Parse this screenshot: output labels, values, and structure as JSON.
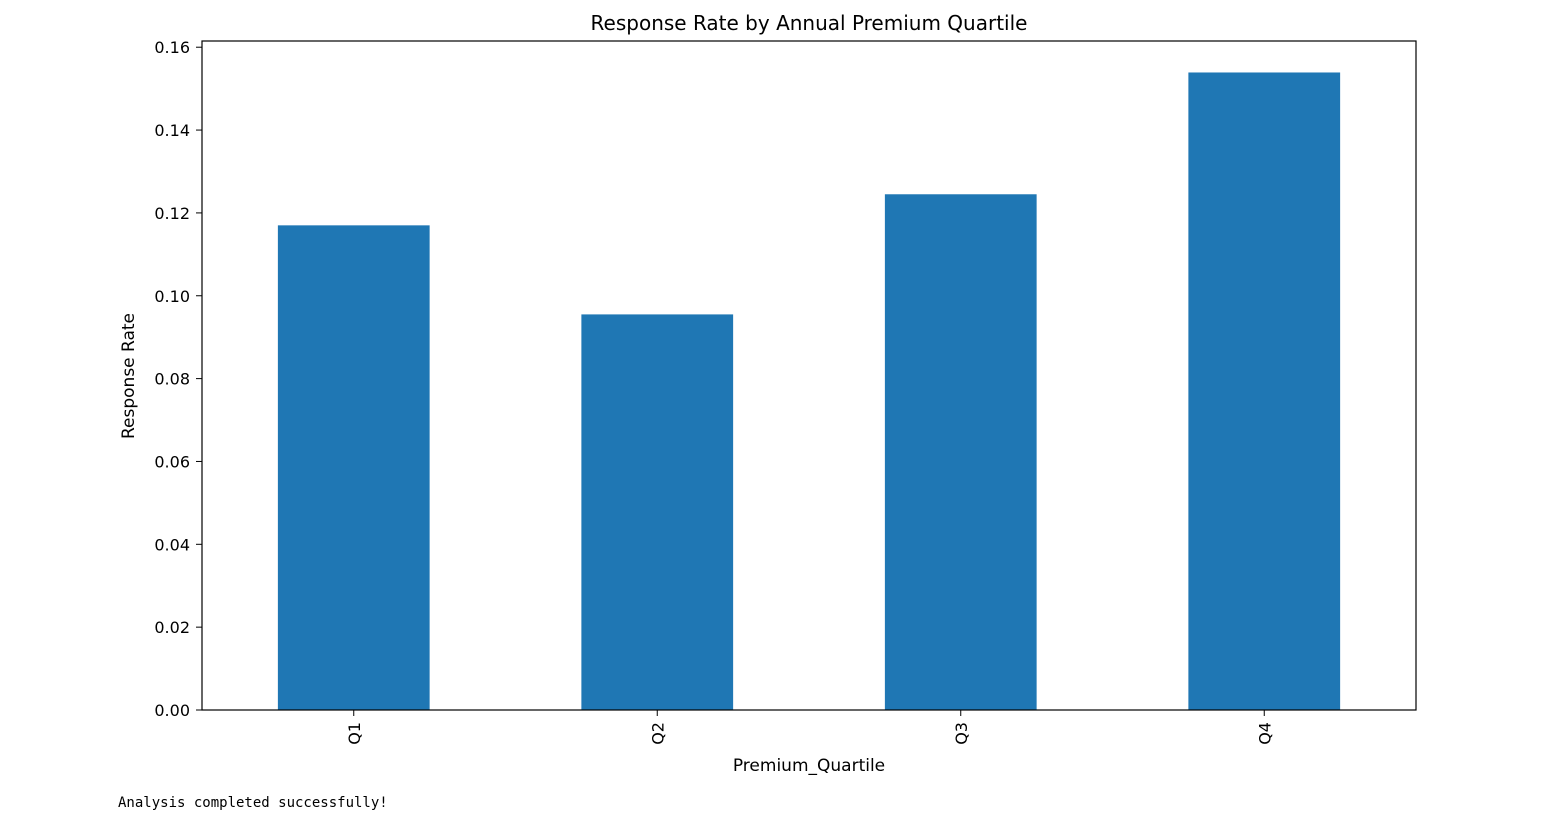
{
  "chart_data": {
    "type": "bar",
    "title": "Response Rate by Annual Premium Quartile",
    "xlabel": "Premium_Quartile",
    "ylabel": "Response Rate",
    "categories": [
      "Q1",
      "Q2",
      "Q3",
      "Q4"
    ],
    "values": [
      0.117,
      0.0955,
      0.1245,
      0.1539
    ],
    "ylim": [
      0,
      0.1615
    ],
    "yticks": [
      "0.00",
      "0.02",
      "0.04",
      "0.06",
      "0.08",
      "0.10",
      "0.12",
      "0.14",
      "0.16"
    ],
    "grid": false,
    "bar_color": "#1f77b4",
    "xtick_rotation": "vertical"
  },
  "output": {
    "status_text": "Analysis completed successfully!"
  }
}
